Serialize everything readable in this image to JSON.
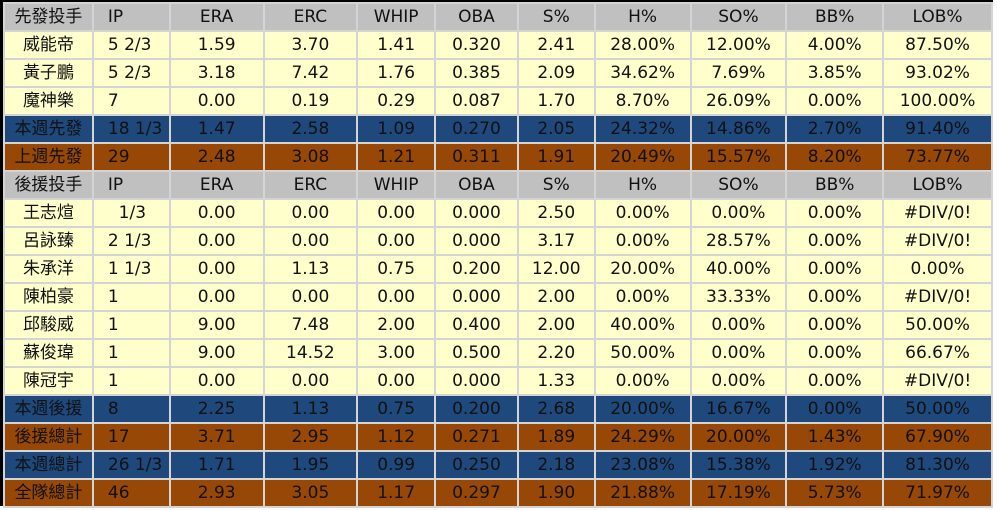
{
  "colors": {
    "header": "#c0c0c0",
    "row": "#ffffcc",
    "summary_blue": "#1f497d",
    "summary_brown": "#974706"
  },
  "columns": [
    "IP",
    "ERA",
    "ERC",
    "WHIP",
    "OBA",
    "S%",
    "H%",
    "SO%",
    "BB%",
    "LOB%"
  ],
  "rows": [
    {
      "type": "hdr",
      "cells": [
        "先發投手",
        "IP",
        "ERA",
        "ERC",
        "WHIP",
        "OBA",
        "S%",
        "H%",
        "SO%",
        "BB%",
        "LOB%"
      ]
    },
    {
      "type": "row",
      "cells": [
        "威能帝",
        "5 2/3",
        "1.59",
        "3.70",
        "1.41",
        "0.320",
        "2.41",
        "28.00%",
        "12.00%",
        "4.00%",
        "87.50%"
      ]
    },
    {
      "type": "row",
      "cells": [
        "黃子鵬",
        "5 2/3",
        "3.18",
        "7.42",
        "1.76",
        "0.385",
        "2.09",
        "34.62%",
        "7.69%",
        "3.85%",
        "93.02%"
      ]
    },
    {
      "type": "row",
      "cells": [
        "魔神樂",
        "7",
        "0.00",
        "0.19",
        "0.29",
        "0.087",
        "1.70",
        "8.70%",
        "26.09%",
        "0.00%",
        "100.00%"
      ]
    },
    {
      "type": "blue",
      "cells": [
        "本週先發",
        "18 1/3",
        "1.47",
        "2.58",
        "1.09",
        "0.270",
        "2.05",
        "24.32%",
        "14.86%",
        "2.70%",
        "91.40%"
      ]
    },
    {
      "type": "brown",
      "cells": [
        "上週先發",
        "29",
        "2.48",
        "3.08",
        "1.21",
        "0.311",
        "1.91",
        "20.49%",
        "15.57%",
        "8.20%",
        "73.77%"
      ]
    },
    {
      "type": "hdr",
      "cells": [
        "後援投手",
        "IP",
        "ERA",
        "ERC",
        "WHIP",
        "OBA",
        "S%",
        "H%",
        "SO%",
        "BB%",
        "LOB%"
      ]
    },
    {
      "type": "row",
      "cells": [
        "王志煊",
        "  1/3",
        "0.00",
        "0.00",
        "0.00",
        "0.000",
        "2.50",
        "0.00%",
        "0.00%",
        "0.00%",
        "#DIV/0!"
      ]
    },
    {
      "type": "row",
      "cells": [
        "呂詠臻",
        "2 1/3",
        "0.00",
        "0.00",
        "0.00",
        "0.000",
        "3.17",
        "0.00%",
        "28.57%",
        "0.00%",
        "#DIV/0!"
      ]
    },
    {
      "type": "row",
      "cells": [
        "朱承洋",
        "1 1/3",
        "0.00",
        "1.13",
        "0.75",
        "0.200",
        "12.00",
        "20.00%",
        "40.00%",
        "0.00%",
        "0.00%"
      ]
    },
    {
      "type": "row",
      "cells": [
        "陳柏豪",
        "1",
        "0.00",
        "0.00",
        "0.00",
        "0.000",
        "2.00",
        "0.00%",
        "33.33%",
        "0.00%",
        "#DIV/0!"
      ]
    },
    {
      "type": "row",
      "cells": [
        "邱駿威",
        "1",
        "9.00",
        "7.48",
        "2.00",
        "0.400",
        "2.00",
        "40.00%",
        "0.00%",
        "0.00%",
        "50.00%"
      ]
    },
    {
      "type": "row",
      "cells": [
        "蘇俊瑋",
        "1",
        "9.00",
        "14.52",
        "3.00",
        "0.500",
        "2.20",
        "50.00%",
        "0.00%",
        "0.00%",
        "66.67%"
      ]
    },
    {
      "type": "row",
      "cells": [
        "陳冠宇",
        "1",
        "0.00",
        "0.00",
        "0.00",
        "0.000",
        "1.33",
        "0.00%",
        "0.00%",
        "0.00%",
        "#DIV/0!"
      ]
    },
    {
      "type": "blue",
      "cells": [
        "本週後援",
        "8",
        "2.25",
        "1.13",
        "0.75",
        "0.200",
        "2.68",
        "20.00%",
        "16.67%",
        "0.00%",
        "50.00%"
      ]
    },
    {
      "type": "brown",
      "cells": [
        "後援總計",
        "17",
        "3.71",
        "2.95",
        "1.12",
        "0.271",
        "1.89",
        "24.29%",
        "20.00%",
        "1.43%",
        "67.90%"
      ]
    },
    {
      "type": "blue",
      "cells": [
        "本週總計",
        "26 1/3",
        "1.71",
        "1.95",
        "0.99",
        "0.250",
        "2.18",
        "23.08%",
        "15.38%",
        "1.92%",
        "81.30%"
      ]
    },
    {
      "type": "brown",
      "cells": [
        "全隊總計",
        "46",
        "2.93",
        "3.05",
        "1.17",
        "0.297",
        "1.90",
        "21.88%",
        "17.19%",
        "5.73%",
        "71.97%"
      ]
    }
  ]
}
